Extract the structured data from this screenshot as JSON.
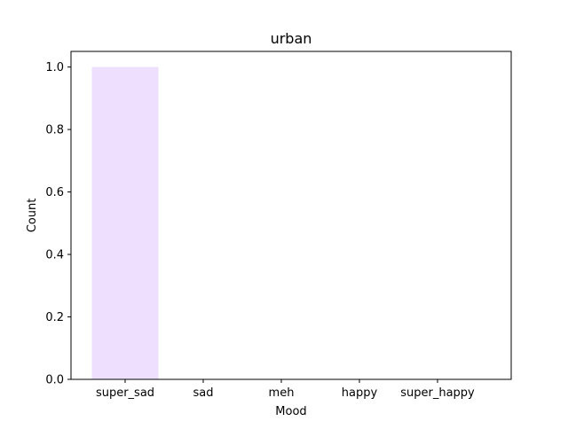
{
  "chart_data": {
    "type": "bar",
    "title": "urban",
    "xlabel": "Mood",
    "ylabel": "Count",
    "categories": [
      "super_sad",
      "sad",
      "meh",
      "happy",
      "super_happy"
    ],
    "values": [
      1,
      0,
      0,
      0,
      0
    ],
    "ylim": [
      0,
      1.05
    ],
    "yticks": [
      "0.0",
      "0.2",
      "0.4",
      "0.6",
      "0.8",
      "1.0"
    ],
    "grid": false,
    "bar_color": "#eedfff"
  }
}
